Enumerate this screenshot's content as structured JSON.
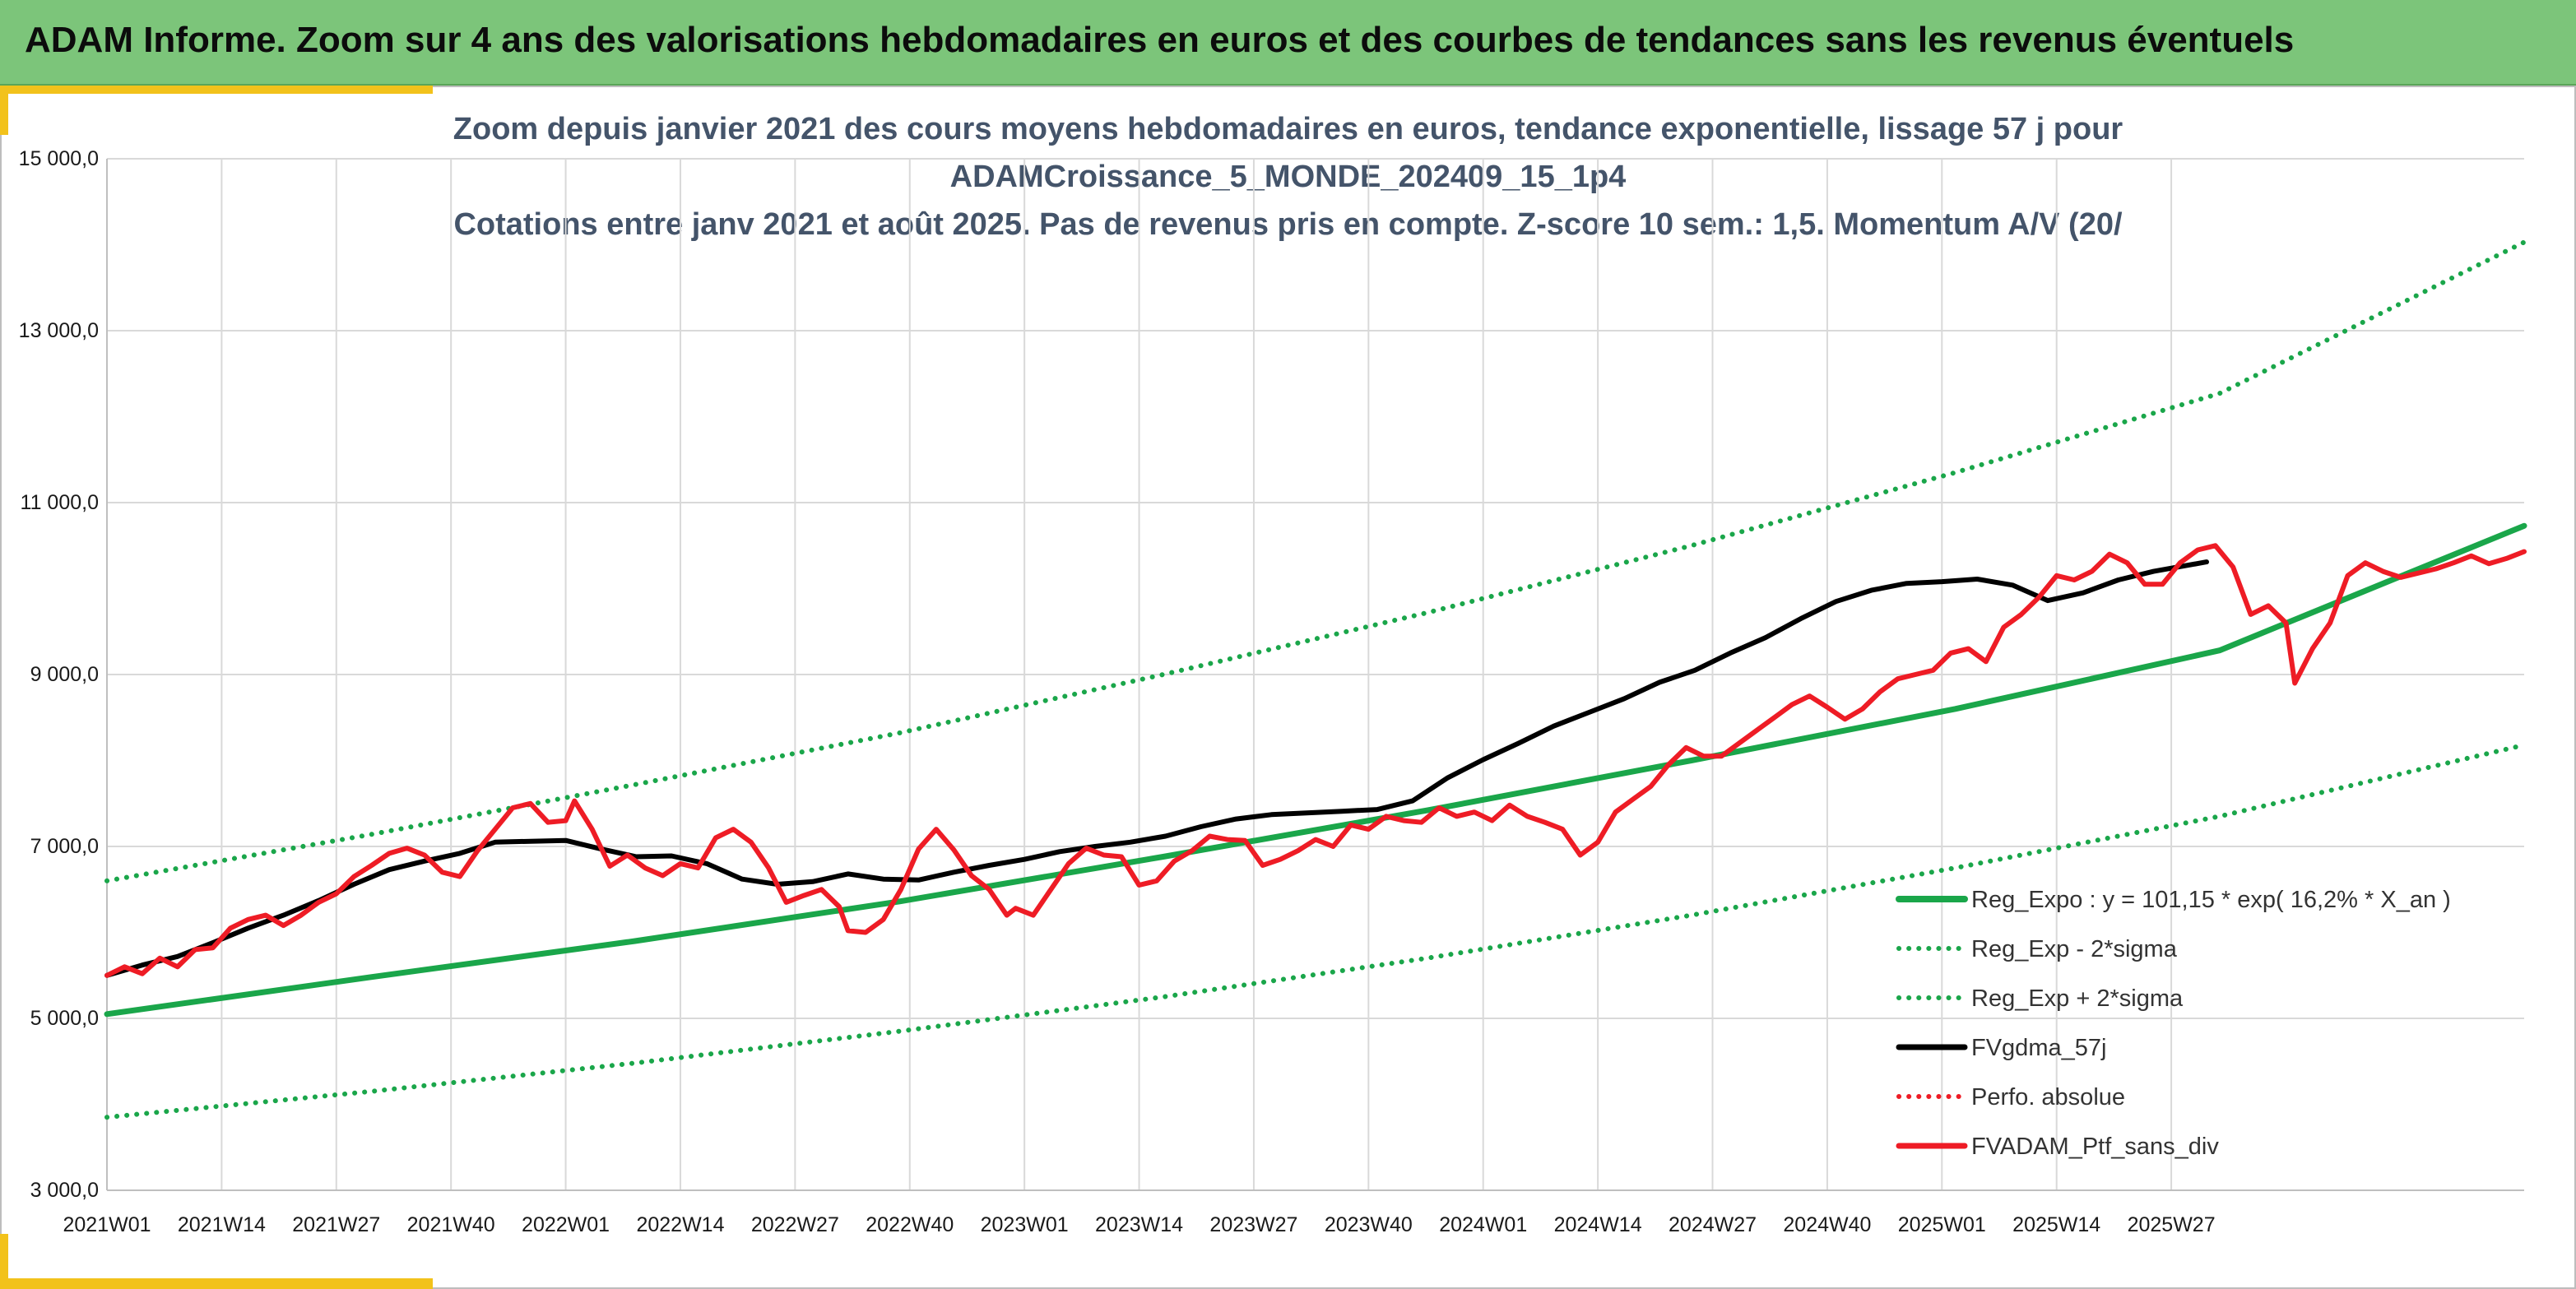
{
  "banner": {
    "title": "ADAM Informe. Zoom sur 4 ans des valorisations hebdomadaires en euros et des courbes de tendances sans les revenus éventuels"
  },
  "colors": {
    "banner": "#7cc57a",
    "accent_corner": "#f2c21b",
    "trend_green": "#1aa64a",
    "sigma_green": "#1aa64a",
    "average_black": "#000000",
    "portfolio_red": "#ee1c25",
    "title_text": "#44546a"
  },
  "chart_data": {
    "type": "line",
    "title_lines": [
      "Zoom depuis janvier 2021 des cours moyens hebdomadaires en euros, tendance exponentielle, lissage 57 j pour",
      "ADAMCroissance_5_MONDE_202409_15_1p4",
      "Cotations entre janv 2021 et août 2025. Pas de revenus pris en compte. Z-score 10 sem.: 1,5. Momentum A/V (20/"
    ],
    "x_ticks": [
      "2021W01",
      "2021W14",
      "2021W27",
      "2021W40",
      "2022W01",
      "2022W14",
      "2022W27",
      "2022W40",
      "2023W01",
      "2023W14",
      "2023W27",
      "2023W40",
      "2024W01",
      "2024W14",
      "2024W27",
      "2024W40",
      "2025W01",
      "2025W14",
      "2025W27"
    ],
    "x_range_weeks": [
      0,
      238
    ],
    "y_ticks": [
      "3 000,0",
      "5 000,0",
      "7 000,0",
      "9 000,0",
      "11 000,0",
      "13 000,0",
      "15 000,0"
    ],
    "ylim": [
      3000,
      15000
    ],
    "grid": true,
    "legend_position": "bottom-right",
    "legend": [
      {
        "label": "Reg_Expo : y = 101,15 * exp( 16,2% *  X_an )",
        "style": "solid-thick",
        "color": "#1aa64a"
      },
      {
        "label": "Reg_Exp - 2*sigma",
        "style": "dotted",
        "color": "#1aa64a"
      },
      {
        "label": "Reg_Exp + 2*sigma",
        "style": "dotted",
        "color": "#1aa64a"
      },
      {
        "label": "FVgdma_57j",
        "style": "solid",
        "color": "#000000"
      },
      {
        "label": "Perfo. absolue",
        "style": "dotted",
        "color": "#ee1c25"
      },
      {
        "label": "FVADAM_Ptf_sans_div",
        "style": "solid",
        "color": "#ee1c25"
      }
    ],
    "series": [
      {
        "name": "Reg_Expo : y = 101,15 * exp( 16,2% *  X_an )",
        "x_weeks": [
          0,
          238
        ],
        "points": [
          [
            0,
            5050
          ],
          [
            26,
            5480
          ],
          [
            52,
            5900
          ],
          [
            78,
            6360
          ],
          [
            104,
            6880
          ],
          [
            130,
            7420
          ],
          [
            156,
            8000
          ],
          [
            182,
            8600
          ],
          [
            208,
            9280
          ],
          [
            238,
            10730
          ]
        ]
      },
      {
        "name": "Reg_Exp - 2*sigma",
        "points": [
          [
            0,
            3850
          ],
          [
            26,
            4150
          ],
          [
            52,
            4480
          ],
          [
            78,
            4850
          ],
          [
            104,
            5250
          ],
          [
            130,
            5700
          ],
          [
            156,
            6200
          ],
          [
            182,
            6750
          ],
          [
            208,
            7350
          ],
          [
            238,
            8180
          ]
        ]
      },
      {
        "name": "Reg_Exp + 2*sigma",
        "points": [
          [
            0,
            6600
          ],
          [
            26,
            7140
          ],
          [
            52,
            7720
          ],
          [
            78,
            8320
          ],
          [
            104,
            9000
          ],
          [
            130,
            9720
          ],
          [
            156,
            10500
          ],
          [
            182,
            11350
          ],
          [
            208,
            12270
          ],
          [
            238,
            14030
          ]
        ]
      },
      {
        "name": "FVgdma_57j",
        "points": [
          [
            0,
            5500
          ],
          [
            4,
            5620
          ],
          [
            8,
            5720
          ],
          [
            12,
            5880
          ],
          [
            16,
            6050
          ],
          [
            20,
            6200
          ],
          [
            24,
            6370
          ],
          [
            28,
            6560
          ],
          [
            32,
            6730
          ],
          [
            36,
            6830
          ],
          [
            40,
            6920
          ],
          [
            44,
            7050
          ],
          [
            48,
            7060
          ],
          [
            52,
            7070
          ],
          [
            56,
            6970
          ],
          [
            60,
            6880
          ],
          [
            64,
            6890
          ],
          [
            68,
            6800
          ],
          [
            72,
            6620
          ],
          [
            76,
            6560
          ],
          [
            80,
            6590
          ],
          [
            84,
            6680
          ],
          [
            88,
            6620
          ],
          [
            92,
            6610
          ],
          [
            96,
            6700
          ],
          [
            100,
            6780
          ],
          [
            104,
            6850
          ],
          [
            108,
            6940
          ],
          [
            112,
            7000
          ],
          [
            116,
            7050
          ],
          [
            120,
            7120
          ],
          [
            124,
            7230
          ],
          [
            128,
            7320
          ],
          [
            132,
            7370
          ],
          [
            136,
            7390
          ],
          [
            140,
            7410
          ],
          [
            144,
            7430
          ],
          [
            148,
            7530
          ],
          [
            152,
            7800
          ],
          [
            156,
            8010
          ],
          [
            160,
            8200
          ],
          [
            164,
            8400
          ],
          [
            168,
            8560
          ],
          [
            172,
            8720
          ],
          [
            176,
            8910
          ],
          [
            180,
            9050
          ],
          [
            184,
            9250
          ],
          [
            188,
            9430
          ],
          [
            192,
            9650
          ],
          [
            196,
            9850
          ],
          [
            200,
            9980
          ],
          [
            204,
            10060
          ],
          [
            208,
            10080
          ],
          [
            212,
            10110
          ],
          [
            216,
            10040
          ],
          [
            220,
            9860
          ],
          [
            224,
            9950
          ],
          [
            228,
            10100
          ],
          [
            232,
            10200
          ],
          [
            238,
            10310
          ]
        ]
      },
      {
        "name": "FVADAM_Ptf_sans_div",
        "points": [
          [
            0,
            5500
          ],
          [
            2,
            5600
          ],
          [
            4,
            5520
          ],
          [
            6,
            5700
          ],
          [
            8,
            5600
          ],
          [
            10,
            5800
          ],
          [
            12,
            5820
          ],
          [
            14,
            6050
          ],
          [
            16,
            6150
          ],
          [
            18,
            6200
          ],
          [
            20,
            6080
          ],
          [
            22,
            6200
          ],
          [
            24,
            6350
          ],
          [
            26,
            6450
          ],
          [
            28,
            6650
          ],
          [
            30,
            6780
          ],
          [
            32,
            6920
          ],
          [
            34,
            6980
          ],
          [
            36,
            6900
          ],
          [
            38,
            6700
          ],
          [
            40,
            6650
          ],
          [
            42,
            6950
          ],
          [
            44,
            7200
          ],
          [
            46,
            7450
          ],
          [
            48,
            7500
          ],
          [
            50,
            7280
          ],
          [
            52,
            7300
          ],
          [
            53,
            7530
          ],
          [
            55,
            7200
          ],
          [
            57,
            6770
          ],
          [
            59,
            6900
          ],
          [
            61,
            6750
          ],
          [
            63,
            6660
          ],
          [
            65,
            6800
          ],
          [
            67,
            6750
          ],
          [
            69,
            7100
          ],
          [
            71,
            7200
          ],
          [
            73,
            7050
          ],
          [
            75,
            6750
          ],
          [
            77,
            6350
          ],
          [
            79,
            6430
          ],
          [
            81,
            6500
          ],
          [
            83,
            6300
          ],
          [
            84,
            6020
          ],
          [
            86,
            6000
          ],
          [
            88,
            6150
          ],
          [
            90,
            6500
          ],
          [
            92,
            6970
          ],
          [
            94,
            7200
          ],
          [
            96,
            6960
          ],
          [
            98,
            6660
          ],
          [
            100,
            6500
          ],
          [
            102,
            6200
          ],
          [
            103,
            6280
          ],
          [
            105,
            6200
          ],
          [
            107,
            6500
          ],
          [
            109,
            6800
          ],
          [
            111,
            6980
          ],
          [
            113,
            6900
          ],
          [
            115,
            6880
          ],
          [
            117,
            6550
          ],
          [
            119,
            6600
          ],
          [
            121,
            6830
          ],
          [
            123,
            6950
          ],
          [
            125,
            7120
          ],
          [
            127,
            7080
          ],
          [
            129,
            7070
          ],
          [
            131,
            6780
          ],
          [
            133,
            6850
          ],
          [
            135,
            6950
          ],
          [
            137,
            7080
          ],
          [
            139,
            7000
          ],
          [
            141,
            7250
          ],
          [
            143,
            7200
          ],
          [
            145,
            7350
          ],
          [
            147,
            7300
          ],
          [
            149,
            7280
          ],
          [
            151,
            7450
          ],
          [
            153,
            7350
          ],
          [
            155,
            7400
          ],
          [
            157,
            7300
          ],
          [
            159,
            7480
          ],
          [
            161,
            7350
          ],
          [
            163,
            7280
          ],
          [
            165,
            7200
          ],
          [
            167,
            6900
          ],
          [
            169,
            7050
          ],
          [
            171,
            7400
          ],
          [
            173,
            7550
          ],
          [
            175,
            7700
          ],
          [
            177,
            7950
          ],
          [
            179,
            8150
          ],
          [
            181,
            8050
          ],
          [
            183,
            8050
          ],
          [
            185,
            8200
          ],
          [
            187,
            8350
          ],
          [
            189,
            8500
          ],
          [
            191,
            8650
          ],
          [
            193,
            8750
          ],
          [
            195,
            8620
          ],
          [
            197,
            8480
          ],
          [
            199,
            8600
          ],
          [
            201,
            8800
          ],
          [
            203,
            8950
          ],
          [
            205,
            9000
          ],
          [
            207,
            9050
          ],
          [
            209,
            9250
          ],
          [
            211,
            9300
          ],
          [
            213,
            9150
          ],
          [
            215,
            9550
          ],
          [
            217,
            9700
          ],
          [
            219,
            9900
          ],
          [
            221,
            10150
          ],
          [
            223,
            10100
          ],
          [
            225,
            10200
          ],
          [
            227,
            10400
          ],
          [
            229,
            10300
          ],
          [
            231,
            10050
          ],
          [
            233,
            10050
          ],
          [
            235,
            10300
          ],
          [
            237,
            10450
          ],
          [
            239,
            10500
          ],
          [
            241,
            10250
          ],
          [
            243,
            9700
          ],
          [
            245,
            9800
          ],
          [
            247,
            9600
          ],
          [
            248,
            8900
          ],
          [
            250,
            9300
          ],
          [
            252,
            9600
          ],
          [
            254,
            10150
          ],
          [
            256,
            10300
          ],
          [
            258,
            10200
          ],
          [
            260,
            10130
          ],
          [
            262,
            10180
          ],
          [
            264,
            10230
          ],
          [
            266,
            10300
          ],
          [
            268,
            10380
          ],
          [
            270,
            10290
          ],
          [
            272,
            10350
          ],
          [
            274,
            10430
          ]
        ]
      }
    ]
  }
}
